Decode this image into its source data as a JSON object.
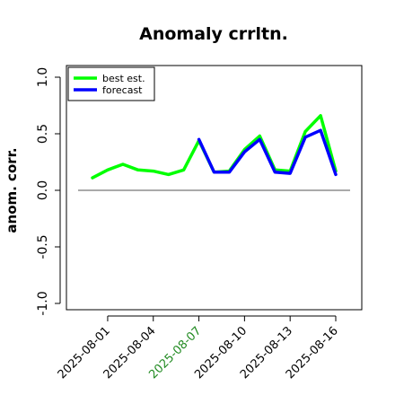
{
  "chart_data": {
    "type": "line",
    "title": "Anomaly crrltn.",
    "xlabel": "",
    "ylabel": "anom. corr.",
    "ylim": [
      -1.0,
      1.0
    ],
    "yticks": [
      "-1.0",
      "-0.5",
      "0.0",
      "0.5",
      "1.0"
    ],
    "x": [
      "2025-07-31",
      "2025-08-01",
      "2025-08-02",
      "2025-08-03",
      "2025-08-04",
      "2025-08-05",
      "2025-08-06",
      "2025-08-07",
      "2025-08-08",
      "2025-08-09",
      "2025-08-10",
      "2025-08-11",
      "2025-08-12",
      "2025-08-13",
      "2025-08-14",
      "2025-08-15",
      "2025-08-16"
    ],
    "xtick_labels": [
      "2025-08-01",
      "2025-08-04",
      "2025-08-07",
      "2025-08-10",
      "2025-08-13",
      "2025-08-16"
    ],
    "xtick_highlight": "2025-08-07",
    "xtick_colors": {
      "default": "#000000",
      "highlight": "#228B22"
    },
    "reference_line": 0.0,
    "grid": false,
    "legend_position": "top-left",
    "series": [
      {
        "name": "best est.",
        "color": "#00ff00",
        "values": [
          0.11,
          0.18,
          0.23,
          0.18,
          0.17,
          0.14,
          0.18,
          0.44,
          0.16,
          0.17,
          0.36,
          0.48,
          0.18,
          0.17,
          0.52,
          0.66,
          0.17
        ]
      },
      {
        "name": "forecast",
        "color": "#0000ff",
        "values": [
          null,
          null,
          null,
          null,
          null,
          null,
          null,
          0.45,
          0.16,
          0.16,
          0.34,
          0.45,
          0.16,
          0.15,
          0.47,
          0.53,
          0.14
        ]
      }
    ]
  }
}
